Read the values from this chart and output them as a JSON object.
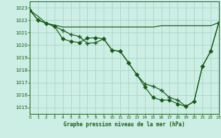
{
  "title": "Graphe pression niveau de la mer (hPa)",
  "background_color": "#cceee4",
  "grid_color": "#aad4c8",
  "line_color": "#1a5c1a",
  "xlim": [
    0,
    23
  ],
  "ylim": [
    1014.5,
    1023.5
  ],
  "yticks": [
    1015,
    1016,
    1017,
    1018,
    1019,
    1020,
    1021,
    1022,
    1023
  ],
  "xticks": [
    0,
    1,
    2,
    3,
    4,
    5,
    6,
    7,
    8,
    9,
    10,
    11,
    12,
    13,
    14,
    15,
    16,
    17,
    18,
    19,
    20,
    21,
    22,
    23
  ],
  "line1_x": [
    0,
    1,
    2,
    3,
    4,
    5,
    6,
    7,
    8,
    9,
    10,
    11,
    12,
    13,
    14,
    15,
    16,
    17,
    18,
    19,
    20,
    21,
    22,
    23
  ],
  "line1_y": [
    1022.8,
    1022.3,
    1021.75,
    1021.6,
    1021.45,
    1021.45,
    1021.45,
    1021.45,
    1021.45,
    1021.45,
    1021.45,
    1021.45,
    1021.45,
    1021.45,
    1021.45,
    1021.45,
    1021.55,
    1021.55,
    1021.55,
    1021.55,
    1021.55,
    1021.55,
    1021.55,
    1021.8
  ],
  "line2_x": [
    0,
    1,
    2,
    3,
    4,
    5,
    6,
    7,
    8,
    9,
    10,
    11,
    12,
    13,
    14,
    15,
    16,
    17,
    18,
    19,
    20,
    21,
    22,
    23
  ],
  "line2_y": [
    1022.8,
    1022.0,
    1021.75,
    1021.5,
    1021.2,
    1020.85,
    1020.7,
    1020.15,
    1020.2,
    1020.5,
    1019.6,
    1019.5,
    1018.6,
    1017.65,
    1016.9,
    1016.7,
    1016.4,
    1015.8,
    1015.6,
    1015.1,
    1015.5,
    1018.3,
    1019.5,
    1021.8
  ],
  "line3_x": [
    0,
    1,
    2,
    3,
    4,
    5,
    6,
    7,
    8,
    9,
    10,
    11,
    12,
    13,
    14,
    15,
    16,
    17,
    18,
    19,
    20,
    21,
    22,
    23
  ],
  "line3_y": [
    1022.8,
    1022.0,
    1021.75,
    1021.5,
    1020.5,
    1020.3,
    1020.2,
    1020.55,
    1020.6,
    1020.5,
    1019.6,
    1019.5,
    1018.6,
    1017.65,
    1016.65,
    1015.8,
    1015.6,
    1015.6,
    1015.3,
    1015.1,
    1015.5,
    1018.3,
    1019.5,
    1021.8
  ]
}
